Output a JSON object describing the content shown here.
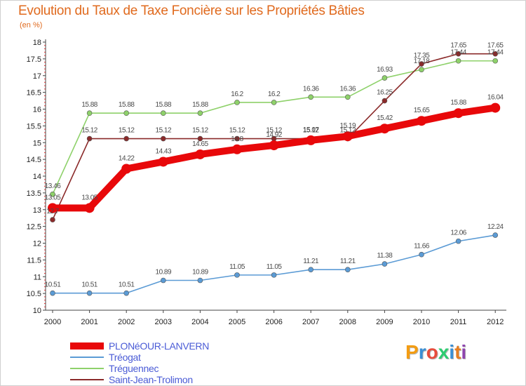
{
  "chart_data": {
    "type": "line",
    "title": "Evolution du Taux de Taxe Foncière sur les Propriétés Bâties",
    "unit_label": "(en %)",
    "xlabel": "",
    "ylabel": "",
    "ylim": [
      10,
      18
    ],
    "y_ticks": [
      "10",
      "10.5",
      "11",
      "11.5",
      "12",
      "12.5",
      "13",
      "13.5",
      "14",
      "14.5",
      "15",
      "15.5",
      "16",
      "16.5",
      "17",
      "17.5",
      "18"
    ],
    "categories": [
      "2000",
      "2001",
      "2002",
      "2003",
      "2004",
      "2005",
      "2006",
      "2007",
      "2008",
      "2009",
      "2010",
      "2011",
      "2012"
    ],
    "series": [
      {
        "name": "PLONéOUR-LANVERN",
        "color": "#e8080a",
        "values": [
          13.05,
          13.05,
          14.22,
          14.43,
          14.65,
          14.8,
          14.92,
          15.07,
          15.19,
          15.42,
          15.65,
          15.88,
          16.04
        ],
        "labels": [
          "13.05",
          "13.05",
          "14.22",
          "14.43",
          "14.65",
          "14.8",
          "14.92",
          "15.07",
          "15.19",
          "15.42",
          "15.65",
          "15.88",
          "16.04"
        ]
      },
      {
        "name": "Tréogat",
        "color": "#5b9bd5",
        "values": [
          10.51,
          10.51,
          10.51,
          10.89,
          10.89,
          11.05,
          11.05,
          11.21,
          11.21,
          11.38,
          11.66,
          12.06,
          12.24
        ],
        "labels": [
          "10.51",
          "10.51",
          "10.51",
          "10.89",
          "10.89",
          "11.05",
          "11.05",
          "11.21",
          "11.21",
          "11.38",
          "11.66",
          "12.06",
          "12.24"
        ]
      },
      {
        "name": "Tréguennec",
        "color": "#8ed16a",
        "values": [
          13.46,
          15.88,
          15.88,
          15.88,
          15.88,
          16.2,
          16.2,
          16.36,
          16.36,
          16.93,
          17.18,
          17.44,
          17.44
        ],
        "labels": [
          "13.46",
          "15.88",
          "15.88",
          "15.88",
          "15.88",
          "16.2",
          "16.2",
          "16.36",
          "16.36",
          "16.93",
          "17.18",
          "17.44",
          "17.44"
        ]
      },
      {
        "name": "Saint-Jean-Trolimon",
        "color": "#8b2a2a",
        "values": [
          12.7,
          15.12,
          15.12,
          15.12,
          15.12,
          15.12,
          15.12,
          15.12,
          15.12,
          16.25,
          17.35,
          17.65,
          17.65
        ],
        "labels": [
          "12.7",
          "15.12",
          "15.12",
          "15.12",
          "15.12",
          "15.12",
          "15.12",
          "15.12",
          "15.12",
          "16.25",
          "17.35",
          "17.65",
          "17.65"
        ]
      }
    ],
    "legend_position": "bottom-left",
    "grid": false
  },
  "logo": {
    "letters": [
      "P",
      "r",
      "o",
      "x",
      "i",
      "t",
      "i"
    ],
    "colors": [
      "#f39c12",
      "#3b8fd4",
      "#e74c3c",
      "#2ecc71",
      "#3b8fd4",
      "#e67e22",
      "#8e44ad"
    ]
  }
}
